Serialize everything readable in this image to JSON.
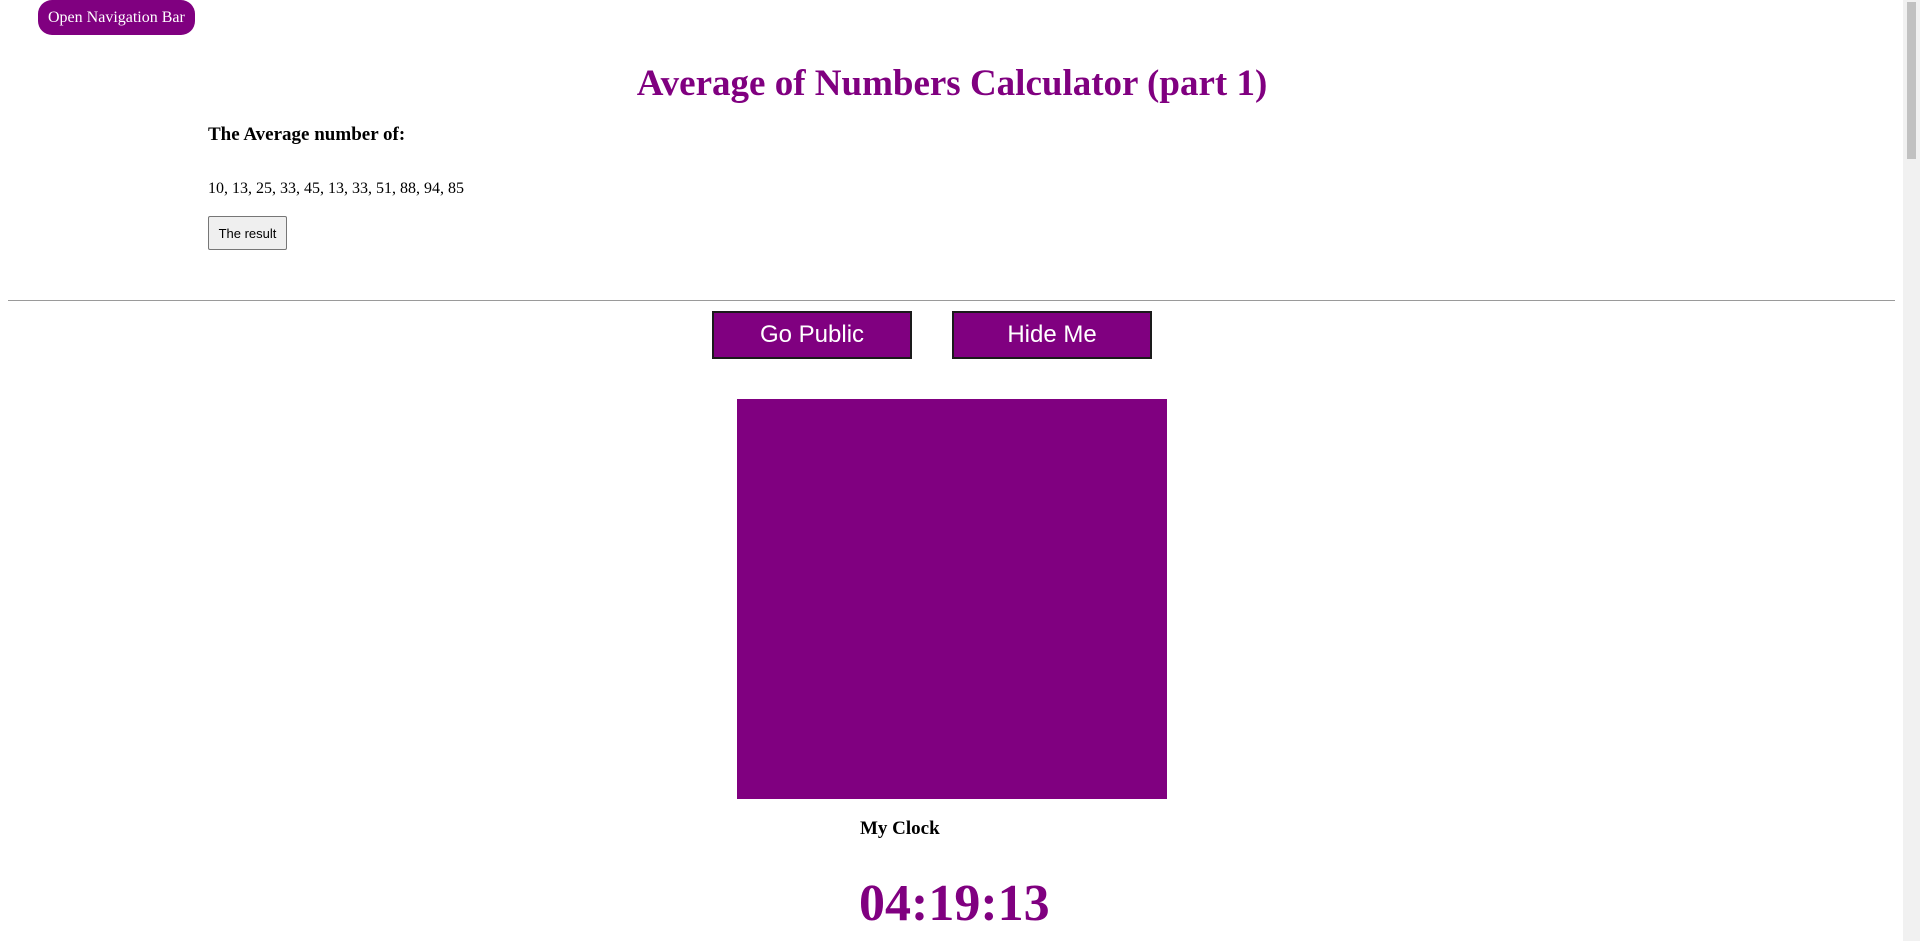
{
  "nav": {
    "toggle_label": "Open Navigation Bar"
  },
  "calculator": {
    "title": "Average of Numbers Calculator (part 1)",
    "subheading": "The Average number of:",
    "numbers": "10, 13, 25, 33, 45, 13, 33, 51, 88, 94, 85",
    "result_button_label": "The result"
  },
  "actions": {
    "go_public_label": "Go Public",
    "hide_me_label": "Hide Me"
  },
  "clock": {
    "label": "My Clock",
    "time": "04:19:13"
  },
  "colors": {
    "accent": "#800080",
    "background": "#ffffff"
  }
}
